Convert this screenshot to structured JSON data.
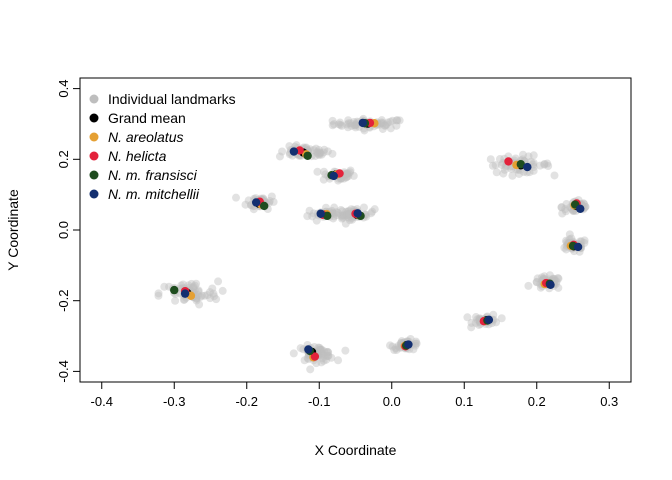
{
  "chart_data": {
    "type": "scatter",
    "xlabel": "X Coordinate",
    "ylabel": "Y Coordinate",
    "xlim": [
      -0.43,
      0.33
    ],
    "ylim": [
      -0.43,
      0.43
    ],
    "xticks": [
      -0.4,
      -0.3,
      -0.2,
      -0.1,
      0.0,
      0.1,
      0.2,
      0.3
    ],
    "xtick_labels": [
      "-0.4",
      "-0.3",
      "-0.2",
      "-0.1",
      "0.0",
      "0.1",
      "0.2",
      "0.3"
    ],
    "yticks": [
      -0.4,
      -0.2,
      0.0,
      0.2,
      0.4
    ],
    "ytick_labels": [
      "-0.4",
      "-0.2",
      "0.0",
      "0.2",
      "0.4"
    ],
    "grid": false,
    "legend_position": "top-left",
    "individual_landmarks": {
      "name": "Individual landmarks",
      "color": "#bebebe",
      "clusters": [
        {
          "cx": -0.03,
          "cy": 0.3,
          "sx": 0.025,
          "sy": 0.007,
          "n": 60
        },
        {
          "cx": -0.12,
          "cy": 0.22,
          "sx": 0.018,
          "sy": 0.008,
          "n": 50
        },
        {
          "cx": -0.075,
          "cy": 0.155,
          "sx": 0.012,
          "sy": 0.009,
          "n": 35
        },
        {
          "cx": -0.18,
          "cy": 0.08,
          "sx": 0.01,
          "sy": 0.01,
          "n": 40
        },
        {
          "cx": -0.09,
          "cy": 0.045,
          "sx": 0.013,
          "sy": 0.008,
          "n": 40
        },
        {
          "cx": -0.05,
          "cy": 0.045,
          "sx": 0.013,
          "sy": 0.008,
          "n": 40
        },
        {
          "cx": 0.175,
          "cy": 0.185,
          "sx": 0.022,
          "sy": 0.012,
          "n": 55
        },
        {
          "cx": 0.255,
          "cy": 0.065,
          "sx": 0.01,
          "sy": 0.01,
          "n": 40
        },
        {
          "cx": 0.25,
          "cy": -0.045,
          "sx": 0.01,
          "sy": 0.01,
          "n": 40
        },
        {
          "cx": 0.215,
          "cy": -0.15,
          "sx": 0.01,
          "sy": 0.009,
          "n": 40
        },
        {
          "cx": 0.13,
          "cy": -0.255,
          "sx": 0.009,
          "sy": 0.008,
          "n": 35
        },
        {
          "cx": 0.02,
          "cy": -0.325,
          "sx": 0.01,
          "sy": 0.007,
          "n": 35
        },
        {
          "cx": -0.105,
          "cy": -0.35,
          "sx": 0.013,
          "sy": 0.011,
          "n": 55
        },
        {
          "cx": -0.28,
          "cy": -0.18,
          "sx": 0.02,
          "sy": 0.017,
          "n": 65
        }
      ]
    },
    "series": [
      {
        "name": "Grand mean",
        "color": "#000000",
        "x": [
          -0.033,
          -0.122,
          -0.077,
          -0.183,
          -0.092,
          -0.048,
          0.178,
          0.254,
          0.251,
          0.216,
          0.131,
          0.02,
          -0.11,
          -0.282
        ],
        "y": [
          0.301,
          0.219,
          0.157,
          0.074,
          0.044,
          0.043,
          0.183,
          0.068,
          -0.046,
          -0.152,
          -0.255,
          -0.326,
          -0.345,
          -0.178
        ]
      },
      {
        "name": "N. areolatus",
        "italic": true,
        "color": "#e5a033",
        "x": [
          -0.024,
          -0.118,
          -0.075,
          -0.18,
          -0.09,
          -0.045,
          0.172,
          0.252,
          0.247,
          0.211,
          0.128,
          0.018,
          -0.108,
          -0.277
        ],
        "y": [
          0.302,
          0.214,
          0.158,
          0.072,
          0.045,
          0.042,
          0.184,
          0.07,
          -0.045,
          -0.153,
          -0.258,
          -0.328,
          -0.36,
          -0.186
        ]
      },
      {
        "name": "N. helicta",
        "italic": true,
        "color": "#e3223b",
        "x": [
          -0.03,
          -0.127,
          -0.072,
          -0.182,
          -0.095,
          -0.05,
          0.161,
          0.255,
          0.251,
          0.213,
          0.127,
          0.019,
          -0.106,
          -0.285
        ],
        "y": [
          0.303,
          0.225,
          0.16,
          0.08,
          0.043,
          0.046,
          0.194,
          0.075,
          -0.042,
          -0.15,
          -0.258,
          -0.329,
          -0.358,
          -0.173
        ]
      },
      {
        "name": "N. m. fransisci",
        "italic": true,
        "color": "#1f4d1f",
        "x": [
          -0.037,
          -0.116,
          -0.083,
          -0.176,
          -0.089,
          -0.043,
          0.178,
          0.253,
          0.25,
          0.218,
          0.132,
          0.02,
          -0.113,
          -0.3
        ],
        "y": [
          0.302,
          0.21,
          0.155,
          0.068,
          0.04,
          0.04,
          0.186,
          0.072,
          -0.045,
          -0.152,
          -0.256,
          -0.327,
          -0.342,
          -0.17
        ]
      },
      {
        "name": "N. m. mitchellii",
        "italic": true,
        "color": "#132f70",
        "x": [
          -0.04,
          -0.135,
          -0.08,
          -0.187,
          -0.098,
          -0.047,
          0.187,
          0.26,
          0.257,
          0.219,
          0.134,
          0.023,
          -0.115,
          -0.285
        ],
        "y": [
          0.303,
          0.222,
          0.153,
          0.078,
          0.046,
          0.047,
          0.178,
          0.06,
          -0.048,
          -0.155,
          -0.254,
          -0.324,
          -0.338,
          -0.18
        ]
      }
    ]
  }
}
